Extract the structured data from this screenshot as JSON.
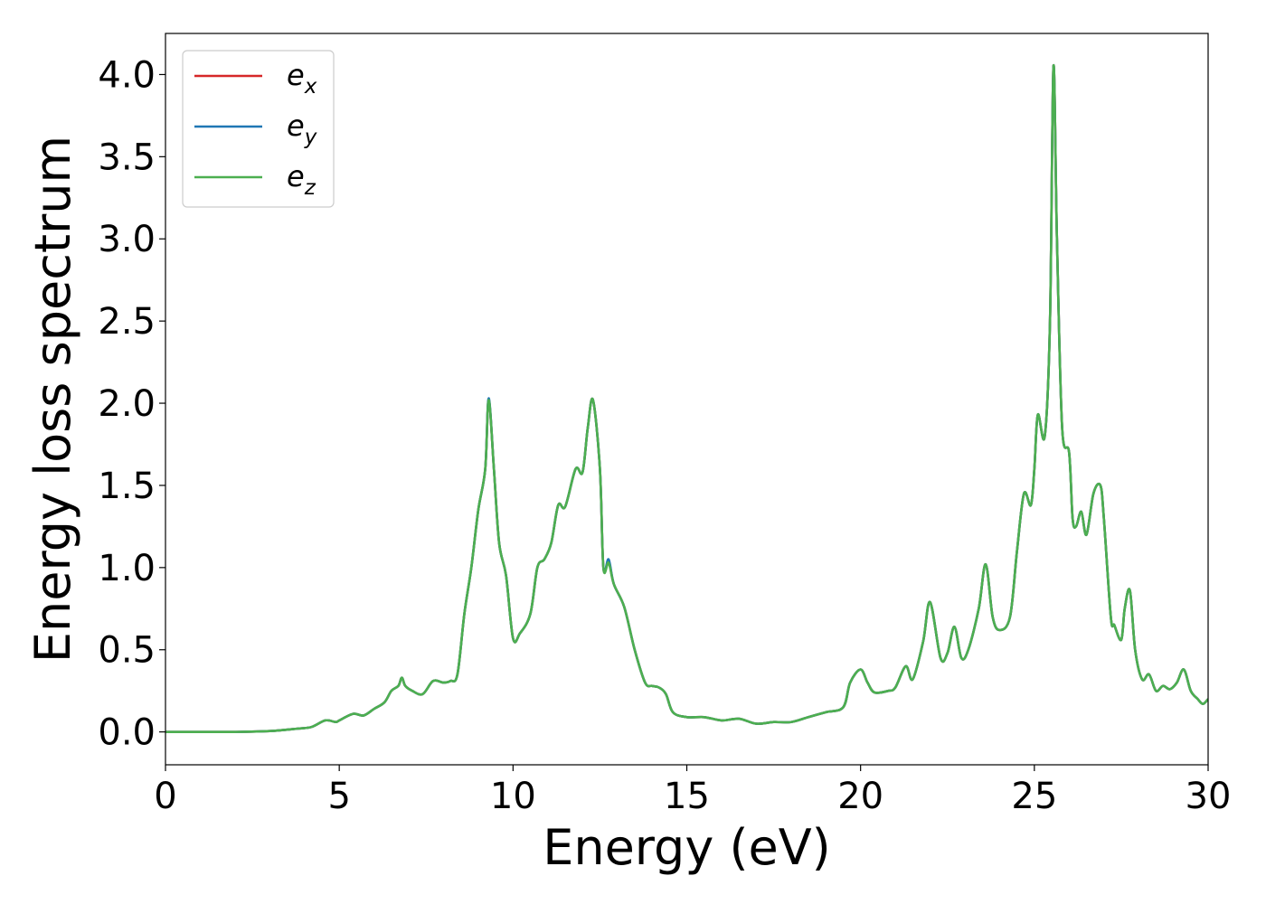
{
  "chart_data": {
    "type": "line",
    "title": "",
    "xlabel": "Energy (eV)",
    "ylabel": "Energy loss spectrum",
    "xlim": [
      0,
      30
    ],
    "ylim": [
      -0.2,
      4.25
    ],
    "xticks": [
      0,
      5,
      10,
      15,
      20,
      25,
      30
    ],
    "xtick_labels": [
      "0",
      "5",
      "10",
      "15",
      "20",
      "25",
      "30"
    ],
    "yticks": [
      0.0,
      0.5,
      1.0,
      1.5,
      2.0,
      2.5,
      3.0,
      3.5,
      4.0
    ],
    "ytick_labels": [
      "0.0",
      "0.5",
      "1.0",
      "1.5",
      "2.0",
      "2.5",
      "3.0",
      "3.5",
      "4.0"
    ],
    "grid": false,
    "legend_position": "top-left",
    "x": [
      0,
      1,
      2,
      3,
      3.8,
      4.2,
      4.6,
      4.9,
      5.0,
      5.4,
      5.7,
      6.0,
      6.3,
      6.5,
      6.7,
      6.8,
      6.9,
      7.1,
      7.4,
      7.7,
      8.0,
      8.2,
      8.4,
      8.6,
      8.8,
      9.0,
      9.2,
      9.3,
      9.45,
      9.6,
      9.8,
      10.0,
      10.2,
      10.5,
      10.7,
      10.9,
      11.1,
      11.3,
      11.5,
      11.8,
      12.0,
      12.15,
      12.3,
      12.5,
      12.6,
      12.75,
      12.9,
      13.2,
      13.5,
      13.8,
      14.0,
      14.2,
      14.4,
      14.6,
      15.0,
      15.5,
      16.0,
      16.5,
      17.0,
      17.5,
      18.0,
      18.5,
      19.0,
      19.5,
      19.7,
      20.0,
      20.2,
      20.4,
      20.8,
      21.0,
      21.3,
      21.5,
      21.8,
      22.0,
      22.3,
      22.5,
      22.7,
      22.9,
      23.1,
      23.4,
      23.6,
      23.8,
      24.0,
      24.3,
      24.5,
      24.7,
      24.9,
      25.0,
      25.1,
      25.3,
      25.45,
      25.55,
      25.65,
      25.8,
      26.0,
      26.1,
      26.2,
      26.35,
      26.5,
      26.7,
      26.9,
      27.0,
      27.2,
      27.3,
      27.5,
      27.6,
      27.75,
      27.9,
      28.1,
      28.3,
      28.5,
      28.7,
      28.9,
      29.1,
      29.3,
      29.5,
      29.7,
      29.85,
      30.0
    ],
    "series": [
      {
        "name": "e_x",
        "color": "#d62728",
        "values": [
          0,
          0,
          0,
          0.005,
          0.02,
          0.03,
          0.07,
          0.06,
          0.07,
          0.11,
          0.1,
          0.14,
          0.18,
          0.25,
          0.28,
          0.33,
          0.28,
          0.25,
          0.23,
          0.31,
          0.3,
          0.31,
          0.35,
          0.72,
          1.0,
          1.35,
          1.6,
          2.02,
          1.6,
          1.15,
          0.95,
          0.57,
          0.6,
          0.72,
          1.0,
          1.05,
          1.15,
          1.38,
          1.37,
          1.6,
          1.58,
          1.85,
          2.02,
          1.6,
          1.0,
          1.04,
          0.9,
          0.76,
          0.5,
          0.3,
          0.28,
          0.27,
          0.23,
          0.12,
          0.09,
          0.09,
          0.07,
          0.08,
          0.05,
          0.06,
          0.06,
          0.09,
          0.12,
          0.15,
          0.3,
          0.38,
          0.3,
          0.24,
          0.25,
          0.27,
          0.4,
          0.32,
          0.55,
          0.79,
          0.45,
          0.48,
          0.64,
          0.45,
          0.5,
          0.75,
          1.02,
          0.7,
          0.62,
          0.7,
          1.1,
          1.45,
          1.38,
          1.6,
          1.93,
          1.8,
          2.5,
          4.05,
          3.0,
          1.85,
          1.7,
          1.3,
          1.25,
          1.34,
          1.2,
          1.45,
          1.5,
          1.3,
          0.7,
          0.65,
          0.56,
          0.75,
          0.86,
          0.5,
          0.32,
          0.35,
          0.25,
          0.28,
          0.26,
          0.3,
          0.38,
          0.25,
          0.2,
          0.17,
          0.2
        ]
      },
      {
        "name": "e_y",
        "color": "#1f77b4",
        "values": [
          0,
          0,
          0,
          0.005,
          0.02,
          0.03,
          0.07,
          0.06,
          0.07,
          0.11,
          0.1,
          0.14,
          0.18,
          0.25,
          0.28,
          0.33,
          0.28,
          0.25,
          0.23,
          0.31,
          0.3,
          0.31,
          0.35,
          0.72,
          1.0,
          1.35,
          1.6,
          2.03,
          1.6,
          1.15,
          0.95,
          0.57,
          0.6,
          0.72,
          1.0,
          1.05,
          1.15,
          1.38,
          1.37,
          1.6,
          1.58,
          1.85,
          2.02,
          1.6,
          1.0,
          1.05,
          0.9,
          0.76,
          0.5,
          0.3,
          0.28,
          0.27,
          0.23,
          0.12,
          0.09,
          0.09,
          0.07,
          0.08,
          0.05,
          0.06,
          0.06,
          0.09,
          0.12,
          0.15,
          0.3,
          0.38,
          0.3,
          0.24,
          0.25,
          0.27,
          0.4,
          0.32,
          0.55,
          0.79,
          0.45,
          0.48,
          0.64,
          0.45,
          0.5,
          0.75,
          1.02,
          0.7,
          0.62,
          0.7,
          1.1,
          1.45,
          1.38,
          1.6,
          1.93,
          1.8,
          2.5,
          4.05,
          3.0,
          1.85,
          1.7,
          1.3,
          1.25,
          1.34,
          1.2,
          1.45,
          1.5,
          1.3,
          0.7,
          0.65,
          0.56,
          0.75,
          0.86,
          0.5,
          0.32,
          0.35,
          0.25,
          0.28,
          0.26,
          0.3,
          0.38,
          0.25,
          0.2,
          0.17,
          0.2
        ]
      },
      {
        "name": "e_z",
        "color": "#4caf50",
        "values": [
          0,
          0,
          0,
          0.005,
          0.02,
          0.03,
          0.07,
          0.06,
          0.07,
          0.11,
          0.1,
          0.14,
          0.18,
          0.25,
          0.28,
          0.33,
          0.28,
          0.25,
          0.23,
          0.31,
          0.3,
          0.31,
          0.35,
          0.72,
          1.0,
          1.35,
          1.6,
          2.02,
          1.6,
          1.15,
          0.95,
          0.57,
          0.6,
          0.72,
          1.0,
          1.05,
          1.15,
          1.38,
          1.37,
          1.6,
          1.58,
          1.85,
          2.02,
          1.6,
          1.0,
          1.03,
          0.9,
          0.76,
          0.5,
          0.3,
          0.28,
          0.27,
          0.23,
          0.12,
          0.09,
          0.09,
          0.07,
          0.08,
          0.05,
          0.06,
          0.06,
          0.09,
          0.12,
          0.15,
          0.3,
          0.38,
          0.3,
          0.24,
          0.25,
          0.27,
          0.4,
          0.32,
          0.55,
          0.79,
          0.45,
          0.48,
          0.64,
          0.45,
          0.5,
          0.75,
          1.02,
          0.7,
          0.62,
          0.7,
          1.1,
          1.45,
          1.38,
          1.6,
          1.93,
          1.8,
          2.5,
          4.05,
          3.0,
          1.85,
          1.7,
          1.3,
          1.25,
          1.34,
          1.2,
          1.45,
          1.5,
          1.3,
          0.7,
          0.65,
          0.56,
          0.75,
          0.86,
          0.5,
          0.32,
          0.35,
          0.25,
          0.28,
          0.26,
          0.3,
          0.38,
          0.25,
          0.2,
          0.17,
          0.2
        ]
      }
    ],
    "legend": [
      {
        "base": "e",
        "sub": "x",
        "color": "#d62728"
      },
      {
        "base": "e",
        "sub": "y",
        "color": "#1f77b4"
      },
      {
        "base": "e",
        "sub": "z",
        "color": "#4caf50"
      }
    ]
  }
}
